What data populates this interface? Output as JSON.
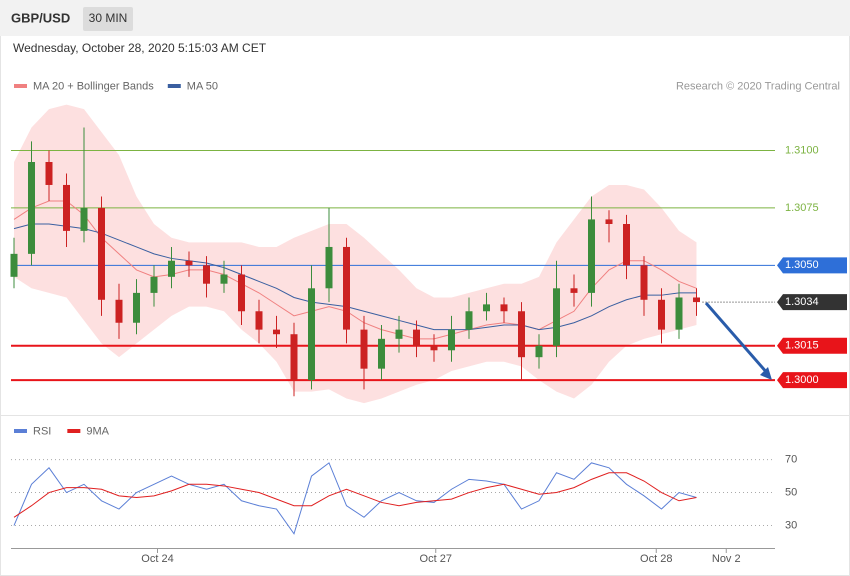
{
  "header": {
    "symbol": "GBP/USD",
    "interval": "30 MIN"
  },
  "timestamp": "Wednesday, October 28, 2020 5:15:03 AM CET",
  "chart_data": [
    {
      "type": "candlestick",
      "credit": "Research © 2020 Trading Central",
      "up_color": "#3c8c3c",
      "down_color": "#cc2222",
      "ylim": [
        1.2987,
        1.3122
      ],
      "x_labels": [
        {
          "label": "Oct 24",
          "at": 8.2
        },
        {
          "label": "Oct 27",
          "at": 24.1
        },
        {
          "label": "Oct 28",
          "at": 36.7
        },
        {
          "label": "Nov 2",
          "at": 40.7
        }
      ],
      "open": [
        1.3045,
        1.3055,
        1.3095,
        1.3085,
        1.3065,
        1.3075,
        1.3035,
        1.3025,
        1.3038,
        1.3045,
        1.3052,
        1.305,
        1.3042,
        1.3046,
        1.303,
        1.3022,
        1.302,
        1.3,
        1.304,
        1.3058,
        1.3022,
        1.3005,
        1.3018,
        1.3022,
        1.3015,
        1.3013,
        1.3022,
        1.303,
        1.3033,
        1.303,
        1.301,
        1.3015,
        1.304,
        1.3038,
        1.307,
        1.3068,
        1.305,
        1.3035,
        1.3022,
        1.3036
      ],
      "high": [
        1.3062,
        1.3104,
        1.31,
        1.309,
        1.311,
        1.308,
        1.3042,
        1.3044,
        1.305,
        1.3058,
        1.3056,
        1.3054,
        1.3052,
        1.305,
        1.3035,
        1.3028,
        1.3025,
        1.305,
        1.3075,
        1.3062,
        1.3028,
        1.3024,
        1.3028,
        1.3026,
        1.302,
        1.3028,
        1.3036,
        1.3038,
        1.3036,
        1.3034,
        1.302,
        1.3052,
        1.3046,
        1.308,
        1.3074,
        1.3072,
        1.3054,
        1.304,
        1.3042,
        1.304
      ],
      "low": [
        1.304,
        1.305,
        1.3078,
        1.3058,
        1.306,
        1.3028,
        1.3018,
        1.302,
        1.3032,
        1.304,
        1.3045,
        1.3036,
        1.3038,
        1.3024,
        1.3016,
        1.3014,
        1.2993,
        1.2996,
        1.3034,
        1.3016,
        1.2996,
        1.3,
        1.3012,
        1.301,
        1.3008,
        1.3008,
        1.3018,
        1.3026,
        1.3025,
        1.3,
        1.3005,
        1.301,
        1.3032,
        1.3032,
        1.306,
        1.3044,
        1.3028,
        1.3016,
        1.3018,
        1.3028
      ],
      "close": [
        1.3055,
        1.3095,
        1.3085,
        1.3065,
        1.3075,
        1.3035,
        1.3025,
        1.3038,
        1.3045,
        1.3052,
        1.305,
        1.3042,
        1.3046,
        1.303,
        1.3022,
        1.302,
        1.3,
        1.304,
        1.3058,
        1.3022,
        1.3005,
        1.3018,
        1.3022,
        1.3015,
        1.3013,
        1.3022,
        1.303,
        1.3033,
        1.303,
        1.301,
        1.3015,
        1.304,
        1.3038,
        1.307,
        1.3068,
        1.305,
        1.3035,
        1.3022,
        1.3036,
        1.3034
      ],
      "bands": {
        "color": "#fde0e0",
        "upper": [
          1.3095,
          1.311,
          1.3118,
          1.312,
          1.3118,
          1.3108,
          1.3098,
          1.308,
          1.3068,
          1.3062,
          1.306,
          1.306,
          1.306,
          1.306,
          1.3058,
          1.3058,
          1.3062,
          1.3065,
          1.3068,
          1.3068,
          1.3062,
          1.3055,
          1.3048,
          1.304,
          1.3036,
          1.3036,
          1.3038,
          1.304,
          1.3042,
          1.3042,
          1.3045,
          1.306,
          1.307,
          1.308,
          1.3085,
          1.3085,
          1.3083,
          1.3075,
          1.3065,
          1.306
        ],
        "lower": [
          1.3045,
          1.304,
          1.3038,
          1.3036,
          1.3026,
          1.3016,
          1.301,
          1.3016,
          1.3022,
          1.3028,
          1.3032,
          1.3032,
          1.303,
          1.3022,
          1.3016,
          1.3008,
          1.2995,
          1.2995,
          1.2996,
          1.2992,
          1.299,
          1.2992,
          1.2995,
          1.2998,
          1.3,
          1.3004,
          1.3006,
          1.3008,
          1.3008,
          1.3006,
          1.3,
          1.2995,
          1.2992,
          1.2998,
          1.3008,
          1.3015,
          1.3018,
          1.302,
          1.3022,
          1.3024
        ]
      },
      "series": [
        {
          "name": "MA 20 + Bollinger Bands",
          "color": "#f08080",
          "values": [
            1.307,
            1.3075,
            1.3078,
            1.3078,
            1.3072,
            1.3062,
            1.3055,
            1.3048,
            1.3045,
            1.3046,
            1.3048,
            1.3048,
            1.3046,
            1.3042,
            1.3038,
            1.3033,
            1.3028,
            1.303,
            1.3032,
            1.303,
            1.3025,
            1.3022,
            1.302,
            1.3018,
            1.3018,
            1.302,
            1.3022,
            1.3024,
            1.3025,
            1.3024,
            1.3022,
            1.3026,
            1.303,
            1.304,
            1.3048,
            1.3052,
            1.3052,
            1.3048,
            1.3043,
            1.304
          ]
        },
        {
          "name": "MA 50",
          "color": "#3a5fa0",
          "values": [
            1.3066,
            1.3068,
            1.3068,
            1.3067,
            1.3066,
            1.3064,
            1.3061,
            1.3058,
            1.3055,
            1.3053,
            1.3052,
            1.3051,
            1.3049,
            1.3046,
            1.3043,
            1.304,
            1.3036,
            1.3034,
            1.3033,
            1.3032,
            1.303,
            1.3028,
            1.3026,
            1.3024,
            1.3022,
            1.3022,
            1.3022,
            1.3023,
            1.3024,
            1.3024,
            1.3022,
            1.3023,
            1.3025,
            1.3028,
            1.3032,
            1.3035,
            1.3037,
            1.3037,
            1.3038,
            1.3038
          ]
        }
      ],
      "levels": [
        {
          "value": 1.31,
          "label": "1.3100",
          "color": "#7cb342",
          "width": 1,
          "tag": false
        },
        {
          "value": 1.3075,
          "label": "1.3075",
          "color": "#7cb342",
          "width": 1,
          "tag": false
        },
        {
          "value": 1.305,
          "label": "1.3050",
          "color": "#2e6fd8",
          "width": 1,
          "tag": true
        },
        {
          "value": 1.3034,
          "label": "1.3034",
          "color": "#333333",
          "width": 1,
          "tag": true,
          "dotted": true
        },
        {
          "value": 1.3015,
          "label": "1.3015",
          "color": "#e8141a",
          "width": 2,
          "tag": true
        },
        {
          "value": 1.3,
          "label": "1.3000",
          "color": "#e8141a",
          "width": 2,
          "tag": true
        }
      ]
    },
    {
      "type": "line",
      "ylim": [
        20,
        94
      ],
      "yticks": [
        70,
        50,
        30
      ],
      "grid": true,
      "series": [
        {
          "name": "RSI",
          "color": "#5b7fd6",
          "values": [
            30,
            55,
            65,
            50,
            55,
            45,
            40,
            50,
            55,
            60,
            55,
            52,
            55,
            45,
            42,
            40,
            25,
            60,
            68,
            42,
            35,
            45,
            50,
            45,
            44,
            52,
            58,
            57,
            55,
            40,
            45,
            62,
            58,
            68,
            65,
            55,
            48,
            40,
            50,
            47
          ]
        },
        {
          "name": "9MA",
          "color": "#e02020",
          "values": [
            35,
            42,
            50,
            53,
            53,
            52,
            48,
            47,
            48,
            51,
            55,
            55,
            54,
            52,
            50,
            46,
            42,
            42,
            48,
            52,
            48,
            44,
            42,
            44,
            45,
            46,
            50,
            53,
            55,
            52,
            49,
            50,
            53,
            58,
            62,
            62,
            57,
            50,
            45,
            47
          ]
        }
      ]
    }
  ]
}
